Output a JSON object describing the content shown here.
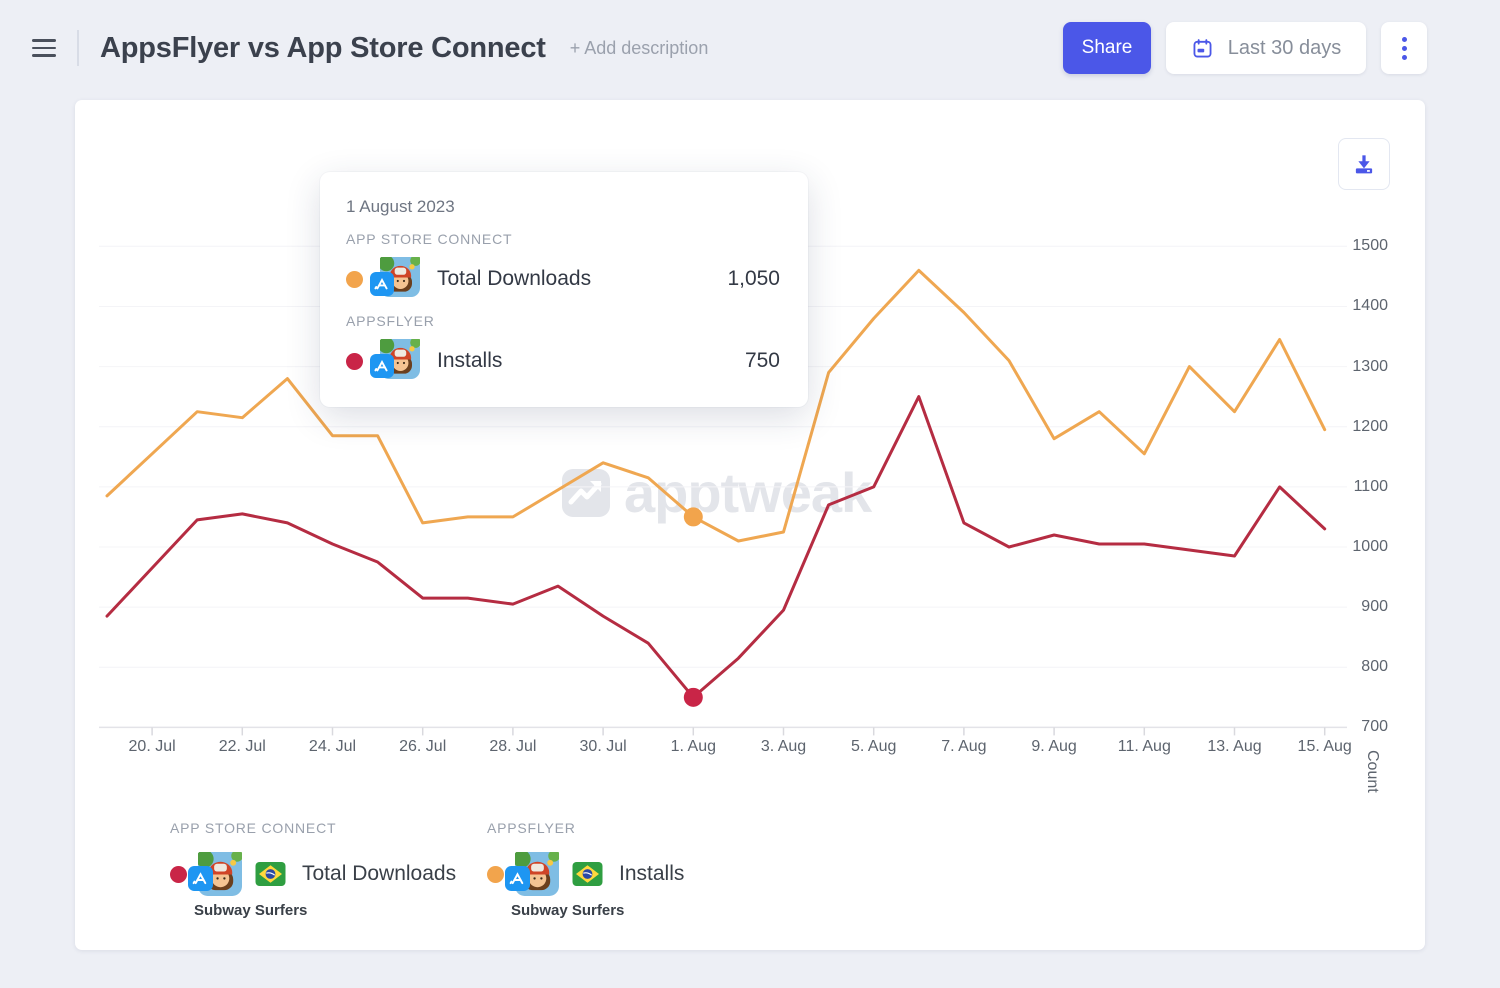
{
  "header": {
    "title": "AppsFlyer vs App Store Connect",
    "add_description_label": "+ Add description",
    "share_label": "Share",
    "date_range_label": "Last 30 days"
  },
  "colors": {
    "accent_blue": "#4b57e8",
    "orange_line": "#efa751",
    "red_line": "#b52c42",
    "orange_dot": "#f2a44c",
    "red_dot": "#c92547",
    "watermark": "#e3e5ea"
  },
  "watermark_text": "apptweak",
  "tooltip": {
    "date": "1 August 2023",
    "sections": [
      {
        "header": "APP STORE CONNECT",
        "metric": "Total Downloads",
        "value": "1,050",
        "dot_color": "#f2a44c"
      },
      {
        "header": "APPSFLYER",
        "metric": "Installs",
        "value": "750",
        "dot_color": "#c92547"
      }
    ]
  },
  "legend": {
    "groups": [
      {
        "header": "APP STORE CONNECT",
        "metric": "Total Downloads",
        "app_name": "Subway Surfers",
        "dot_color": "#c92547"
      },
      {
        "header": "APPSFLYER",
        "metric": "Installs",
        "app_name": "Subway Surfers",
        "dot_color": "#f2a44c"
      }
    ]
  },
  "chart_data": {
    "type": "line",
    "x": [
      "19. Jul",
      "20. Jul",
      "21. Jul",
      "22. Jul",
      "23. Jul",
      "24. Jul",
      "25. Jul",
      "26. Jul",
      "27. Jul",
      "28. Jul",
      "29. Jul",
      "30. Jul",
      "31. Jul",
      "1. Aug",
      "2. Aug",
      "3. Aug",
      "4. Aug",
      "5. Aug",
      "6. Aug",
      "7. Aug",
      "8. Aug",
      "9. Aug",
      "10. Aug",
      "11. Aug",
      "12. Aug",
      "13. Aug",
      "14. Aug",
      "15. Aug"
    ],
    "xtick_start": 1,
    "xtick_step": 2,
    "series": [
      {
        "name": "App Store Connect — Total Downloads (Subway Surfers)",
        "color": "#efa751",
        "dot_color": "#f2a44c",
        "values": [
          1085,
          1155,
          1225,
          1215,
          1280,
          1185,
          1185,
          1040,
          1050,
          1050,
          1095,
          1140,
          1115,
          1050,
          1010,
          1025,
          1290,
          1380,
          1460,
          1390,
          1310,
          1180,
          1225,
          1155,
          1300,
          1225,
          1345,
          1195
        ],
        "highlight_index": 13,
        "highlight_value": 1050
      },
      {
        "name": "AppsFlyer — Installs (Subway Surfers)",
        "color": "#b52c42",
        "dot_color": "#c92547",
        "values": [
          885,
          965,
          1045,
          1055,
          1040,
          1005,
          975,
          915,
          915,
          905,
          935,
          885,
          840,
          750,
          815,
          895,
          1070,
          1100,
          1250,
          1040,
          1000,
          1020,
          1005,
          1005,
          995,
          985,
          1100,
          1030
        ],
        "highlight_index": 13,
        "highlight_value": 750
      }
    ],
    "title": "",
    "xlabel": "",
    "ylabel": "Count",
    "ylim": [
      700,
      1500
    ],
    "yticks": [
      700,
      800,
      900,
      1000,
      1100,
      1200,
      1300,
      1400,
      1500
    ],
    "grid": true,
    "legend_position": "bottom"
  }
}
